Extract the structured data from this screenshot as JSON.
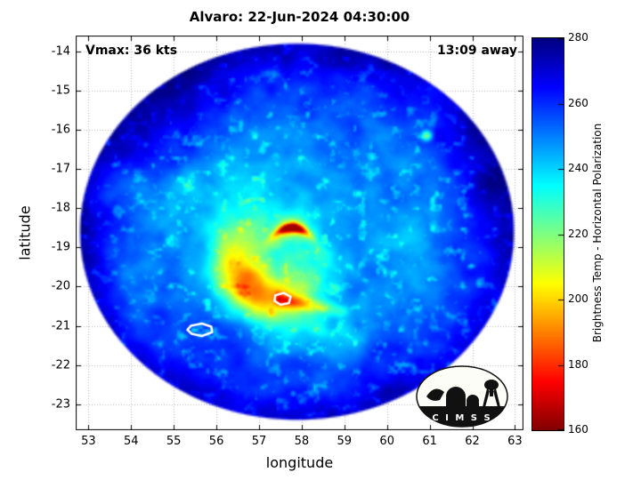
{
  "logo": {
    "text": "C I M S S"
  },
  "chart_data": {
    "type": "heatmap",
    "title": "Alvaro: 22-Jun-2024 04:30:00",
    "xlabel": "longitude",
    "ylabel": "latitude",
    "xlim": [
      52.7,
      63.2
    ],
    "ylim": [
      -23.66,
      -13.6
    ],
    "xticks": [
      53,
      54,
      55,
      56,
      57,
      58,
      59,
      60,
      61,
      62,
      63
    ],
    "yticks": [
      -14,
      -15,
      -16,
      -17,
      -18,
      -19,
      -20,
      -21,
      -22,
      -23
    ],
    "grid": true,
    "annotations": {
      "vmax": "Vmax: 36 kts",
      "eta": "13:09 away"
    },
    "colorbar": {
      "label": "Brightness Temp - Horizontal Polarization",
      "range": [
        160,
        280
      ],
      "ticks": [
        160,
        180,
        200,
        220,
        240,
        260,
        280
      ],
      "colormap": "jet_reversed",
      "key_colors": {
        "280": "#000080",
        "240": "#00ffff",
        "200": "#ffff00",
        "180": "#ff0000",
        "160": "#800000"
      }
    },
    "render_params": {
      "swath": {
        "lon": 57.9,
        "lat": -18.6,
        "a_deg": 5.05,
        "b_deg": 4.75
      },
      "storm_center": {
        "lon": 57.5,
        "lat": -19.3
      },
      "base_temp": 251,
      "hotspot": {
        "lon": 57.78,
        "lat": -18.5,
        "curve": 1.0,
        "core_amp": 78,
        "halo_amp": 30,
        "min_temp_K": 164
      },
      "arc": {
        "radius": 1.05,
        "sigma": 0.55,
        "angle_deg": -135,
        "angle_width": 1.45,
        "amp": 46
      },
      "tail": {
        "x0": 57.55,
        "y0": -20.33,
        "x1": 58.95,
        "y1": -20.62,
        "width": 0.17,
        "amp": 30
      },
      "dark_patches": [
        [
          55.0,
          -15.0,
          1.7,
          1.3,
          8
        ],
        [
          61.7,
          -17.3,
          1.2,
          1.5,
          6
        ]
      ],
      "specks": [
        [
          60.35,
          -13.9,
          45,
          0.12
        ],
        [
          60.95,
          -16.15,
          40,
          0.13
        ]
      ],
      "contours": [
        [
          [
            57.38,
            -20.22
          ],
          [
            57.58,
            -20.16
          ],
          [
            57.74,
            -20.26
          ],
          [
            57.7,
            -20.42
          ],
          [
            57.5,
            -20.46
          ],
          [
            57.36,
            -20.36
          ]
        ],
        [
          [
            55.4,
            -21.0
          ],
          [
            55.66,
            -20.94
          ],
          [
            55.88,
            -21.02
          ],
          [
            55.9,
            -21.16
          ],
          [
            55.66,
            -21.26
          ],
          [
            55.42,
            -21.2
          ],
          [
            55.32,
            -21.1
          ]
        ]
      ]
    }
  }
}
